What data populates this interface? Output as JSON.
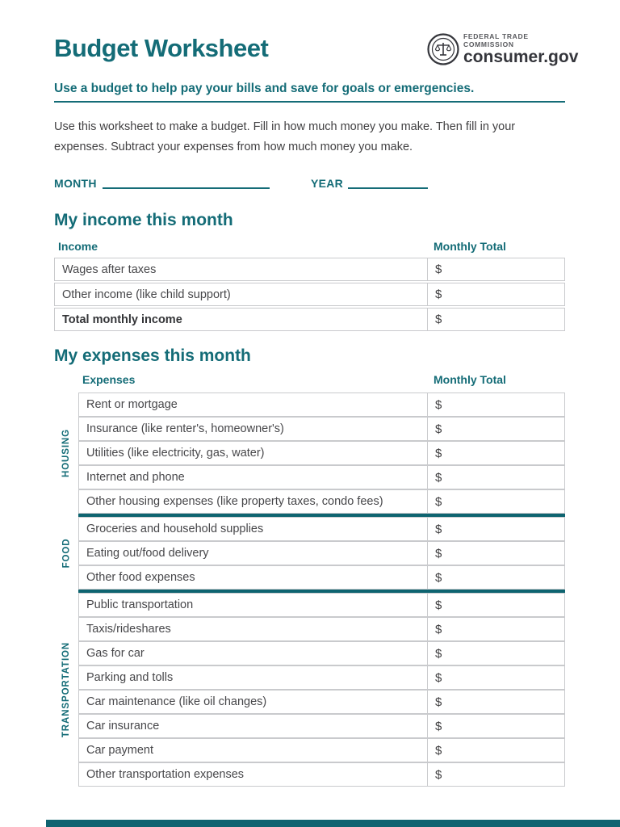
{
  "page": {
    "title": "Budget Worksheet",
    "tagline": "Use a budget to help pay your bills and save for goals or emergencies.",
    "intro": "Use this worksheet to make a budget. Fill in how much money you make. Then fill in your expenses. Subtract your expenses from how much money you make.",
    "month_label": "MONTH",
    "year_label": "YEAR"
  },
  "logo": {
    "agency": "FEDERAL TRADE COMMISSION",
    "site": "consumer.gov",
    "seal_icon": "ftc-scales-seal"
  },
  "income": {
    "heading": "My income this month",
    "col_item": "Income",
    "col_total": "Monthly Total",
    "rows": [
      {
        "label": "Wages after taxes",
        "value": "$",
        "bold": false
      },
      {
        "label": "Other income (like child support)",
        "value": "$",
        "bold": false
      },
      {
        "label": "Total monthly income",
        "value": "$",
        "bold": true
      }
    ]
  },
  "expenses": {
    "heading": "My expenses this month",
    "col_item": "Expenses",
    "col_total": "Monthly Total",
    "currency": "$",
    "groups": [
      {
        "name": "HOUSING",
        "rows": [
          "Rent or mortgage",
          "Insurance (like renter's, homeowner's)",
          "Utilities (like electricity, gas, water)",
          "Internet and phone",
          "Other housing expenses (like property taxes, condo fees)"
        ]
      },
      {
        "name": "FOOD",
        "rows": [
          "Groceries and household supplies",
          "Eating out/food delivery",
          "Other food expenses"
        ]
      },
      {
        "name": "TRANSPORTATION",
        "rows": [
          "Public transportation",
          "Taxis/rideshares",
          "Gas for car",
          "Parking and tolls",
          "Car maintenance (like oil changes)",
          "Car insurance",
          "Car payment",
          "Other transportation expenses"
        ]
      }
    ]
  },
  "colors": {
    "teal": "#146c77",
    "teal_dark": "#0e6470",
    "text": "#414042",
    "border": "#c9cacd"
  }
}
